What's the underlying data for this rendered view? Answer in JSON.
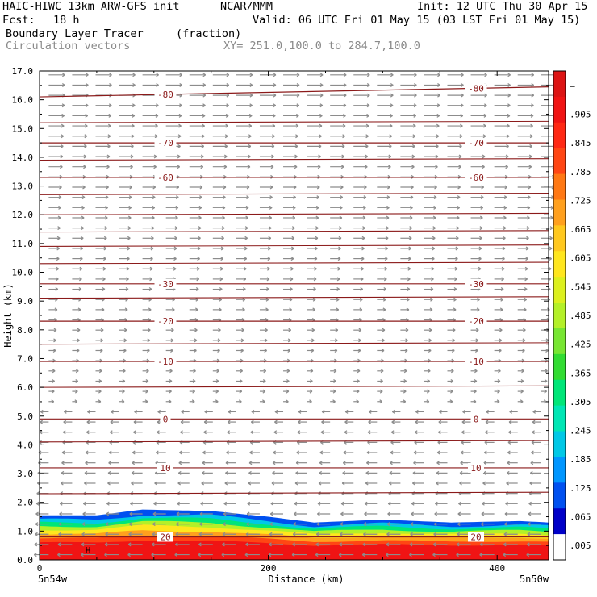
{
  "header": {
    "title_left": "HAIC-HIWC 13km ARW-GFS init",
    "org": "NCAR/MMM",
    "init": "Init: 12 UTC Thu 30 Apr 15",
    "fcst_label": "Fcst:",
    "fcst_value": "18 h",
    "valid": "Valid: 06 UTC Fri 01 May 15 (03 LST Fri 01 May 15)",
    "field_name": "Boundary Layer Tracer",
    "field_unit": "(fraction)",
    "overlay_name": "Circulation vectors",
    "xy_text": "XY= 251.0,100.0 to 284.7,100.0"
  },
  "chart_data": {
    "type": "heatmap",
    "xlabel": "Distance (km)",
    "ylabel": "Height (km)",
    "xlim": [
      0,
      445
    ],
    "ylim": [
      0,
      17
    ],
    "x_ticks": [
      "0",
      "200",
      "400"
    ],
    "x_tick_values": [
      0,
      200,
      400
    ],
    "x_end_labels": [
      "5n54w",
      "5n50w"
    ],
    "y_ticks": [
      "0.0",
      "1.0",
      "2.0",
      "3.0",
      "4.0",
      "5.0",
      "6.0",
      "7.0",
      "8.0",
      "9.0",
      "10.0",
      "11.0",
      "12.0",
      "13.0",
      "14.0",
      "15.0",
      "16.0",
      "17.0"
    ],
    "colorbar_labels": [
      ".005",
      ".065",
      ".125",
      ".185",
      ".245",
      ".305",
      ".365",
      ".425",
      ".485",
      ".545",
      ".605",
      ".665",
      ".725",
      ".785",
      ".845",
      ".905",
      "–"
    ],
    "colorbar_colors": [
      "#ffffff",
      "#0000c8",
      "#0050f0",
      "#0096ff",
      "#00c8e6",
      "#00e6b4",
      "#00e678",
      "#32dc32",
      "#78e632",
      "#b4f028",
      "#dcf01e",
      "#ffe61e",
      "#ffc81e",
      "#ffa01e",
      "#ff7814",
      "#ff4614",
      "#ff2814",
      "#f01414",
      "#dc1414"
    ],
    "temperature_contours": [
      {
        "label": "-80",
        "height_km": 16.1
      },
      {
        "label": "-70",
        "height_km": 14.5
      },
      {
        "label": "-60",
        "height_km": 13.3
      },
      {
        "label": "-30",
        "height_km": 9.6
      },
      {
        "label": "-20",
        "height_km": 8.3
      },
      {
        "label": "-10",
        "height_km": 6.9
      },
      {
        "label": "0",
        "height_km": 4.9
      },
      {
        "label": "10",
        "height_km": 3.2
      },
      {
        "label": "20",
        "height_km": 0.8
      }
    ],
    "tracer_layer_top_km": [
      {
        "x": 0,
        "top": 1.55
      },
      {
        "x": 50,
        "top": 1.55
      },
      {
        "x": 90,
        "top": 1.75
      },
      {
        "x": 150,
        "top": 1.7
      },
      {
        "x": 200,
        "top": 1.5
      },
      {
        "x": 240,
        "top": 1.3
      },
      {
        "x": 300,
        "top": 1.4
      },
      {
        "x": 360,
        "top": 1.3
      },
      {
        "x": 420,
        "top": 1.35
      },
      {
        "x": 445,
        "top": 1.3
      }
    ],
    "annotations": [
      "H"
    ],
    "grid": false,
    "legend": "colorbar right"
  }
}
